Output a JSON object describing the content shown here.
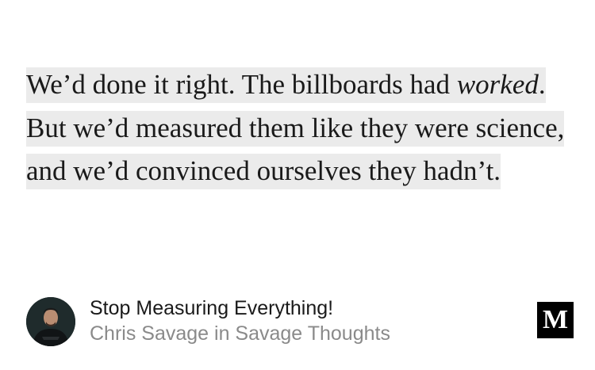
{
  "quote": {
    "part1": "We’d done it right. The billboards had ",
    "emphasis": "worked",
    "part2": ". But we’d measured them like they were science, and we’d convinced ourselves they hadn’t."
  },
  "story": {
    "title": "Stop Measuring Everything!",
    "byline": "Chris Savage in Savage Thoughts"
  },
  "publisher": {
    "logo_letter": "M",
    "logo_name": "medium-logo"
  },
  "colors": {
    "highlight": "#ebebeb",
    "byline": "#8a8a8a",
    "text": "#1a1a1a",
    "logo_bg": "#000000"
  }
}
